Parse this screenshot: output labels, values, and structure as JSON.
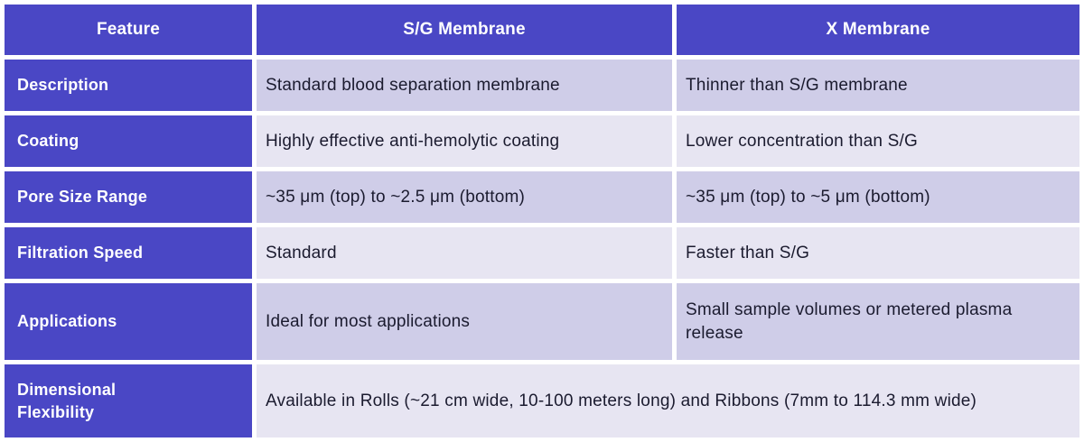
{
  "table": {
    "header": {
      "feature": "Feature",
      "sg": "S/G Membrane",
      "x": "X Membrane"
    },
    "rows": [
      {
        "label": "Description",
        "sg": "Standard blood separation membrane",
        "x": "Thinner than S/G membrane"
      },
      {
        "label": "Coating",
        "sg": "Highly effective anti-hemolytic coating",
        "x": "Lower concentration than S/G"
      },
      {
        "label": "Pore Size Range",
        "sg": "~35 μm (top) to ~2.5 μm (bottom)",
        "x": "~35 μm (top) to ~5 μm (bottom)"
      },
      {
        "label": "Filtration Speed",
        "sg": "Standard",
        "x": "Faster than S/G"
      },
      {
        "label": "Applications",
        "sg": "Ideal for most applications",
        "x": "Small sample volumes or metered plasma release"
      },
      {
        "label": "Dimensional Flexibility",
        "span": "Available in Rolls (~21 cm wide, 10-100 meters long) and Ribbons (7mm to 114.3 mm wide)"
      }
    ],
    "colors": {
      "accent_purple": "#4A47C5",
      "row_dark_lavender": "#CFCDE8",
      "row_light_lavender": "#E7E5F2",
      "body_text": "#1B1B2F",
      "header_text": "#FFFFFF",
      "grid_background": "#FFFFFF"
    }
  }
}
